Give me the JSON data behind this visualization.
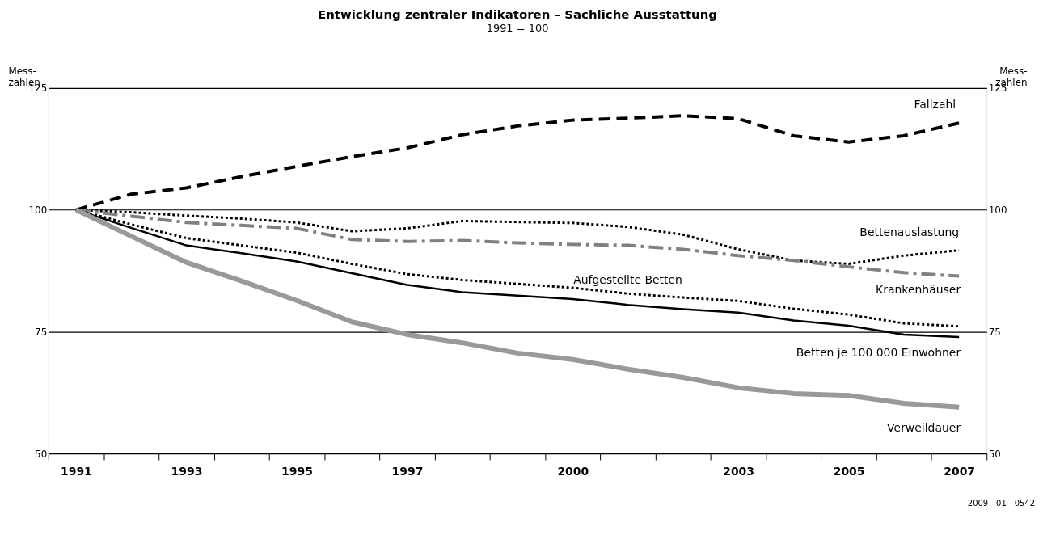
{
  "chart_data": {
    "type": "line",
    "title": "Entwicklung zentraler Indikatoren – Sachliche Ausstattung",
    "subtitle": "1991 = 100",
    "ylabel": "Mess-\nzahlen",
    "y2label": "Mess-\nzahlen",
    "categories": [
      "1991",
      null,
      "1993",
      null,
      "1995",
      null,
      "1997",
      null,
      null,
      "2000",
      null,
      null,
      "2003",
      null,
      "2005",
      null,
      "2007"
    ],
    "ylim": [
      50,
      125
    ],
    "yticks": [
      50,
      75,
      100,
      125
    ],
    "y2lim": [
      50,
      125
    ],
    "y2ticks": [
      50,
      75,
      100,
      125
    ],
    "grid": "y",
    "series": [
      {
        "name": "Fallzahl",
        "color": "#000000",
        "line_style": "dashed",
        "values": [
          100,
          103.2,
          104.5,
          106.8,
          108.9,
          110.9,
          112.7,
          115.4,
          117.2,
          118.4,
          118.8,
          119.3,
          118.7,
          115.2,
          113.9,
          115.2,
          117.8
        ]
      },
      {
        "name": "Bettenauslastung",
        "color": "#000000",
        "line_style": "dotted",
        "values": [
          100,
          99.5,
          98.8,
          98.2,
          97.4,
          95.6,
          96.2,
          97.7,
          97.5,
          97.3,
          96.5,
          94.9,
          91.9,
          89.6,
          88.9,
          90.6,
          91.7
        ]
      },
      {
        "name": "Krankenhäuser",
        "color": "#808080",
        "line_style": "dashed",
        "values": [
          100,
          98.7,
          97.4,
          96.8,
          96.2,
          93.9,
          93.5,
          93.7,
          93.2,
          92.9,
          92.7,
          91.9,
          90.6,
          89.6,
          88.3,
          87.1,
          86.4
        ]
      },
      {
        "name": "Aufgestellte Betten",
        "color": "#000000",
        "line_style": "dotted",
        "values": [
          100,
          97.0,
          94.2,
          92.7,
          91.2,
          88.9,
          86.8,
          85.6,
          84.8,
          84.0,
          82.8,
          82.0,
          81.3,
          79.7,
          78.5,
          76.7,
          76.1
        ]
      },
      {
        "name": "Betten je 100 000 Einwohner",
        "color": "#000000",
        "line_style": "solid",
        "values": [
          100,
          96.3,
          92.7,
          91.1,
          89.4,
          87.0,
          84.6,
          83.1,
          82.4,
          81.7,
          80.5,
          79.6,
          78.9,
          77.3,
          76.2,
          74.4,
          73.9
        ]
      },
      {
        "name": "Verweildauer",
        "color": "#999999",
        "line_style": "solid",
        "values": [
          100,
          94.6,
          89.2,
          85.4,
          81.4,
          77.0,
          74.4,
          72.7,
          70.6,
          69.3,
          67.3,
          65.6,
          63.5,
          62.3,
          61.9,
          60.3,
          59.5
        ]
      }
    ],
    "annotations": [
      "2009 - 01 - 0542"
    ]
  }
}
